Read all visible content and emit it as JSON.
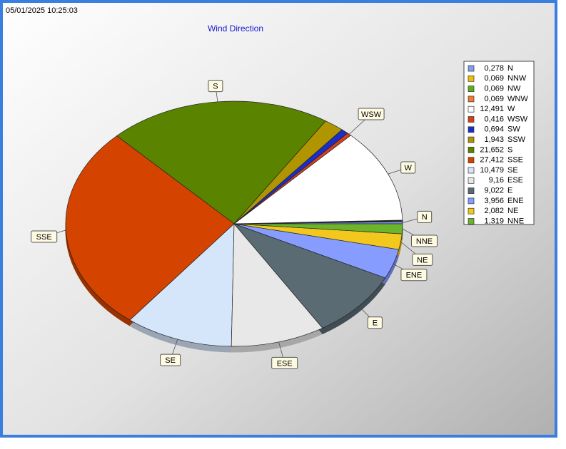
{
  "chart_data": {
    "type": "pie",
    "title": "Wind Direction",
    "annotation": "05/01/2025 10:25:03",
    "categories": [
      "N",
      "NNW",
      "NW",
      "WNW",
      "W",
      "WSW",
      "SW",
      "SSW",
      "S",
      "SSE",
      "SE",
      "ESE",
      "E",
      "ENE",
      "NE",
      "NNE"
    ],
    "values": [
      0.278,
      0.069,
      0.069,
      0.069,
      12.491,
      0.416,
      0.694,
      1.943,
      21.652,
      27.412,
      10.479,
      9.16,
      9.022,
      3.956,
      2.082,
      1.319
    ],
    "value_labels": [
      "0,278",
      "0,069",
      "0,069",
      "0,069",
      "12,491",
      "0,416",
      "0,694",
      "1,943",
      "21,652",
      "27,412",
      "10,479",
      "9,16",
      "9,022",
      "3,956",
      "2,082",
      "1,319"
    ],
    "colors": [
      "#7f9ff0",
      "#f0c000",
      "#5fae1e",
      "#f07a30",
      "#ffffff",
      "#d4401a",
      "#1a2ec8",
      "#b09400",
      "#5a8400",
      "#d44400",
      "#d6e6fa",
      "#e8e8e8",
      "#5a6b74",
      "#869cff",
      "#f2c81e",
      "#6cb42c"
    ],
    "legend": "right"
  }
}
